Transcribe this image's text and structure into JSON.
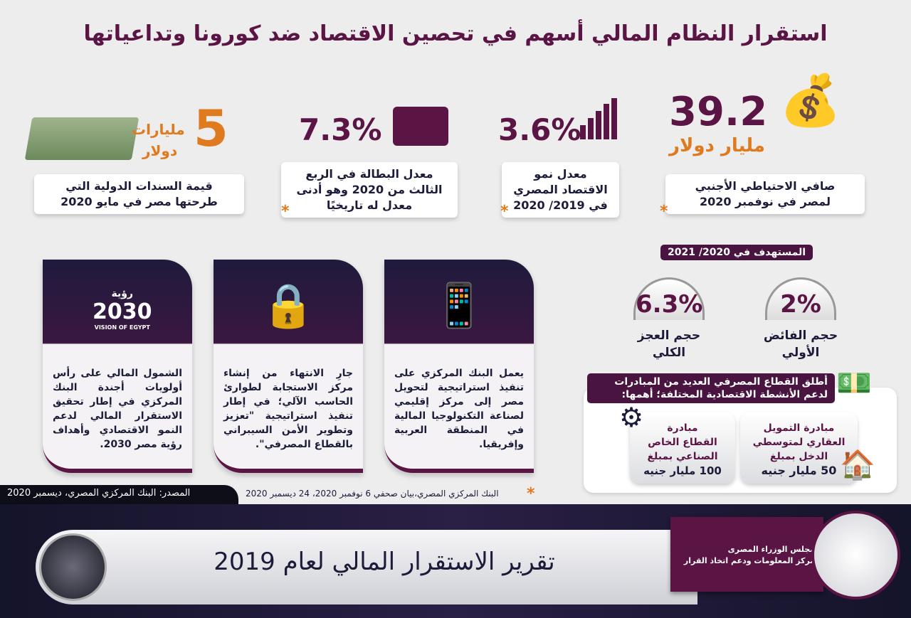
{
  "title": "استقرار النظام المالي أسهم في تحصين الاقتصاد ضد كورونا وتداعياتها",
  "stats": [
    {
      "value": "39.2",
      "unit": "مليار دولار",
      "line1": "صافي الاحتياطي الأجنبي",
      "line2": "لمصر في نوفمبر 2020",
      "icon": "money-bag-icon"
    },
    {
      "value": "3.6%",
      "line1": "معدل نمو",
      "line2": "الاقتصاد المصري",
      "line3": "في 2019/ 2020",
      "icon": "bar-chart-icon"
    },
    {
      "value": "7.3%",
      "line1": "معدل البطالة في الربع",
      "line2": "الثالث من 2020 وهو أدنى",
      "line3": "معدل له تاريخيًا",
      "icon": "briefcase-search-icon"
    },
    {
      "value": "5",
      "unit1": "مليارات",
      "unit2": "دولار",
      "line1": "قيمة السندات الدولية التي",
      "line2": "طرحتها مصر في مايو 2020",
      "icon": "cash-stack-icon"
    }
  ],
  "star": "*",
  "target": {
    "label": "المستهدف في 2020/ 2021",
    "items": [
      {
        "value": "2%",
        "label1": "حجم الفائض",
        "label2": "الأولي"
      },
      {
        "value": "6.3%",
        "label1": "حجم العجز",
        "label2": "الكلي"
      }
    ]
  },
  "cards": [
    {
      "text": "يعمل البنك المركزي على تنفيذ استراتيجية لتحويل مصر إلى مركز إقليمي لصناعة التكنولوجيا المالية في المنطقة العربية وإفريقيا.",
      "icon": "fintech-phone-icon"
    },
    {
      "text": "جارِ الانتهاء من إنشاء مركز الاستجابة لطوارئ الحاسب الآلي؛ في إطار تنفيذ استراتيجية \"تعزيز وتطوير الأمن السيبراني بالقطاع المصرفي\".",
      "icon": "cyber-lock-icon"
    },
    {
      "text": "الشمول المالي على رأس أولويات أجندة البنك المركزي في إطار تحقيق الاستقرار المالي لدعم النمو الاقتصادي وأهداف رؤية مصر 2030.",
      "icon": "vision-2030-logo",
      "logo_top": "رؤية",
      "logo_num": "2030",
      "logo_sub": "VISION OF EGYPT"
    }
  ],
  "initiatives": {
    "header1": "أطلق القطاع المصرفي العديد من المبادرات",
    "header2": "لدعم الأنشطة الاقتصادية المختلفة؛ أهمها:",
    "items": [
      {
        "l1": "مبادرة التمويل",
        "l2": "العقاري لمتوسطي",
        "l3": "الدخل بمبلغ",
        "amount": "50 مليار جنيه",
        "icon": "hand-house-dollar-icon"
      },
      {
        "l1": "مبادرة",
        "l2": "القطاع الخاص",
        "l3": "الصناعي بمبلغ",
        "amount": "100 مليار جنيه",
        "icon": "gear-icon"
      }
    ]
  },
  "footnote": "البنك المركزي المصري،بيان صحفي 6 نوفمبر 2020، 24 ديسمبر 2020",
  "source": "المصدر: البنك المركزي المصري، ديسمبر 2020",
  "banner": {
    "title": "تقرير الاستقرار المالي لعام 2019",
    "org1": "مجلس الوزراء المصرى",
    "org2": "مركز المعلومات ودعم اتخاذ القرار"
  },
  "colors": {
    "purple": "#5a1545",
    "orange": "#e07a1e",
    "navy": "#1c1c3a"
  }
}
